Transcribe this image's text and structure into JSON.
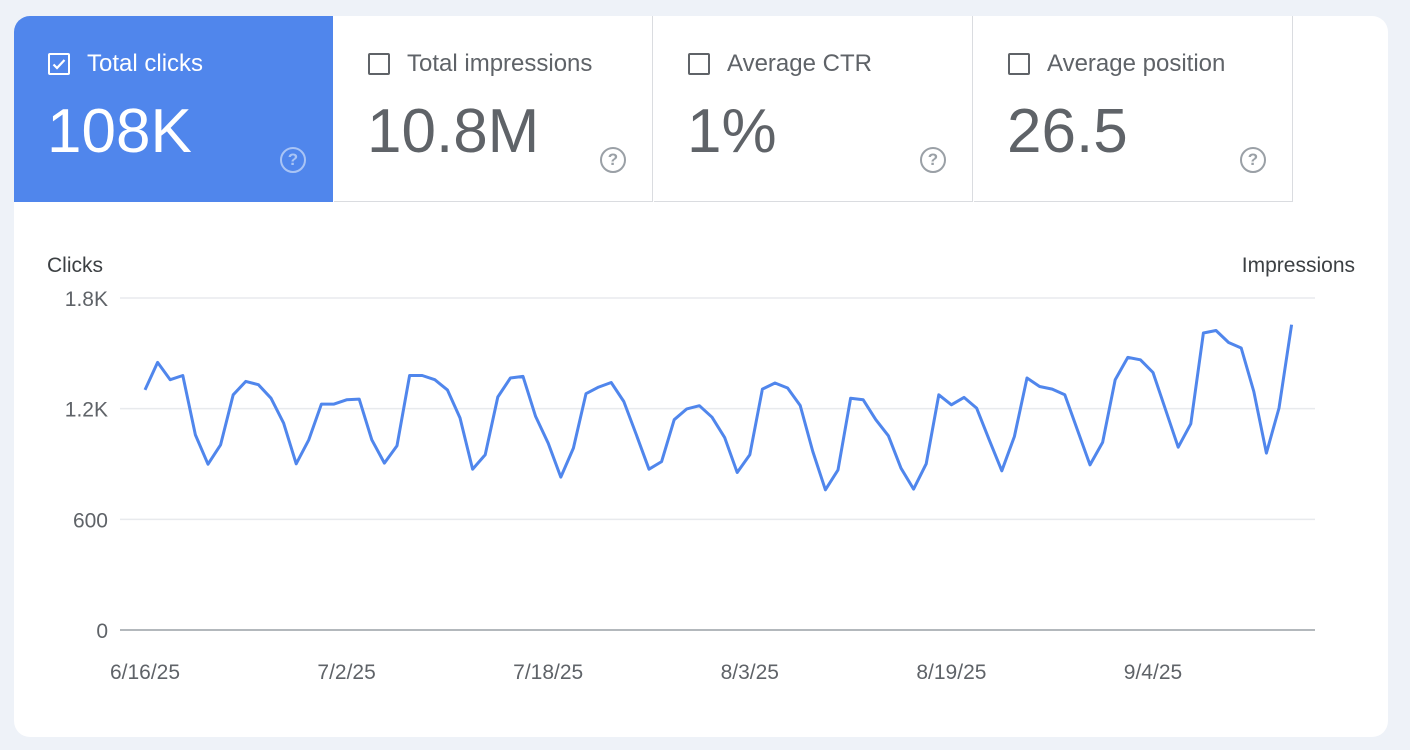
{
  "metrics": [
    {
      "label": "Total clicks",
      "value": "108K",
      "checked": true
    },
    {
      "label": "Total impressions",
      "value": "10.8M",
      "checked": false
    },
    {
      "label": "Average CTR",
      "value": "1%",
      "checked": false
    },
    {
      "label": "Average position",
      "value": "26.5",
      "checked": false
    }
  ],
  "help_glyph": "?",
  "colors": {
    "accent": "#5086ec",
    "line": "#5086ec"
  },
  "chart_data": {
    "type": "line",
    "ylabel_left": "Clicks",
    "ylabel_right": "Impressions",
    "ylim": [
      0,
      1800
    ],
    "yticks": [
      {
        "v": 0,
        "label": "0"
      },
      {
        "v": 600,
        "label": "600"
      },
      {
        "v": 1200,
        "label": "1.2K"
      },
      {
        "v": 1800,
        "label": "1.8K"
      }
    ],
    "xticks": [
      "6/16/25",
      "7/2/25",
      "7/18/25",
      "8/3/25",
      "8/19/25",
      "9/4/25"
    ],
    "grid": true,
    "series": [
      {
        "values": [
          1302,
          1451,
          1357,
          1380,
          1058,
          899,
          1004,
          1275,
          1348,
          1330,
          1257,
          1122,
          901,
          1031,
          1225,
          1225,
          1248,
          1252,
          1031,
          905,
          999,
          1380,
          1380,
          1357,
          1302,
          1150,
          872,
          950,
          1263,
          1366,
          1375,
          1158,
          1013,
          829,
          986,
          1281,
          1317,
          1342,
          1239,
          1058,
          872,
          913,
          1140,
          1199,
          1216,
          1154,
          1044,
          854,
          950,
          1306,
          1339,
          1312,
          1217,
          968,
          760,
          868,
          1257,
          1248,
          1140,
          1053,
          877,
          764,
          901,
          1275,
          1221,
          1261,
          1203,
          1031,
          863,
          1049,
          1366,
          1320,
          1306,
          1275,
          1085,
          895,
          1017,
          1357,
          1478,
          1465,
          1396,
          1194,
          991,
          1118,
          1610,
          1624,
          1559,
          1529,
          1293,
          959,
          1203,
          1655
        ]
      }
    ]
  }
}
